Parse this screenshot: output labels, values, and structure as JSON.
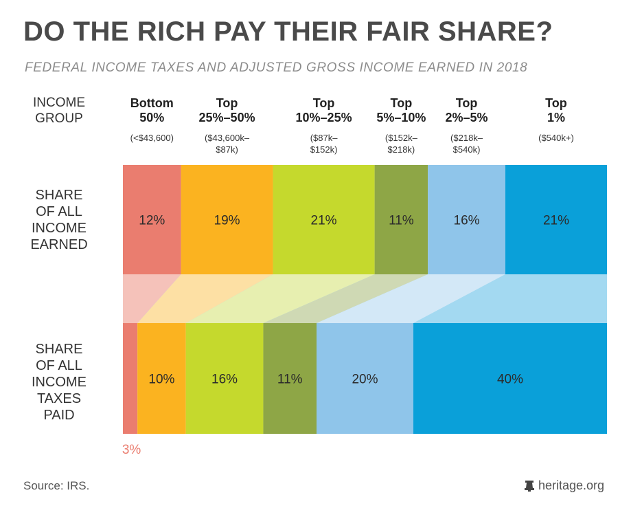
{
  "title": "DO THE RICH PAY THEIR FAIR SHARE?",
  "subtitle": "FEDERAL INCOME TAXES AND ADJUSTED GROSS INCOME EARNED IN 2018",
  "labels": {
    "group_header": "INCOME\nGROUP",
    "income_row": "SHARE\nOF ALL\nINCOME\nEARNED",
    "tax_row": "SHARE\nOF ALL\nINCOME\nTAXES\nPAID"
  },
  "source": "Source: IRS.",
  "brand": "heritage.org",
  "brand_icon": "heritage-bell-icon",
  "chart_data": {
    "type": "bar",
    "groups": [
      {
        "name": "Bottom\n50%",
        "range": "(<$43,600)",
        "color": "#ea7d6f",
        "bridge": "#f5c2ba"
      },
      {
        "name": "Top\n25%–50%",
        "range": "($43,600k–\n$87k)",
        "color": "#fbb320",
        "bridge": "#fde0a4"
      },
      {
        "name": "Top\n10%–25%",
        "range": "($87k–\n$152k)",
        "color": "#c5d92d",
        "bridge": "#e7efb0"
      },
      {
        "name": "Top\n5%–10%",
        "range": "($152k–\n$218k)",
        "color": "#8ea646",
        "bridge": "#cfd9b4"
      },
      {
        "name": "Top\n2%–5%",
        "range": "($218k–\n$540k)",
        "color": "#8fc5ea",
        "bridge": "#d3e8f7"
      },
      {
        "name": "Top\n1%",
        "range": "($540k+)",
        "color": "#0aa0d9",
        "bridge": "#a3d9f1"
      }
    ],
    "series": [
      {
        "name": "SHARE OF ALL INCOME EARNED",
        "values": [
          12,
          19,
          21,
          11,
          16,
          21
        ],
        "labels": [
          "12%",
          "19%",
          "21%",
          "11%",
          "16%",
          "21%"
        ]
      },
      {
        "name": "SHARE OF ALL INCOME TAXES PAID",
        "values": [
          3,
          10,
          16,
          11,
          20,
          40
        ],
        "labels": [
          "3%",
          "10%",
          "16%",
          "11%",
          "20%",
          "40%"
        ]
      }
    ],
    "total": 100
  }
}
